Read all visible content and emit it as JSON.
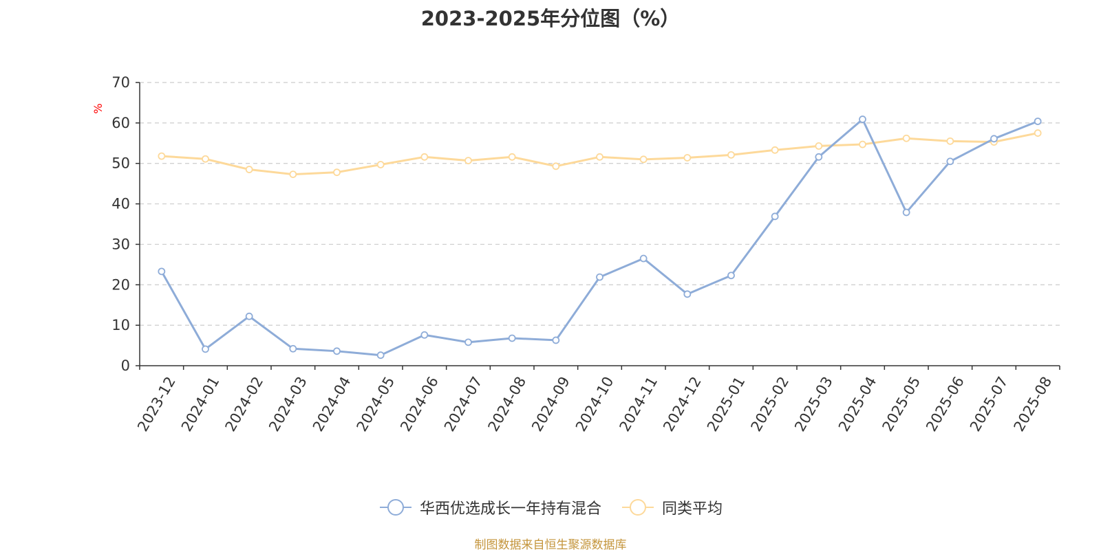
{
  "chart_data": {
    "type": "line",
    "title": "2023-2025年分位图（%）",
    "ylabel": "%",
    "xlabel": "",
    "ylim": [
      0,
      70
    ],
    "yticks": [
      0,
      10,
      20,
      30,
      40,
      50,
      60,
      70
    ],
    "grid": true,
    "legend_position": "bottom",
    "categories": [
      "2023-12",
      "2024-01",
      "2024-02",
      "2024-03",
      "2024-04",
      "2024-05",
      "2024-06",
      "2024-07",
      "2024-08",
      "2024-09",
      "2024-10",
      "2024-11",
      "2024-12",
      "2025-01",
      "2025-02",
      "2025-03",
      "2025-04",
      "2025-05",
      "2025-06",
      "2025-07",
      "2025-08"
    ],
    "series": [
      {
        "name": "华西优选成长一年持有混合",
        "color": "#8eacd8",
        "values": [
          23.3,
          4.1,
          12.2,
          4.2,
          3.6,
          2.6,
          7.6,
          5.8,
          6.8,
          6.3,
          21.9,
          26.5,
          17.7,
          22.3,
          36.9,
          51.6,
          60.9,
          37.9,
          50.5,
          56.1,
          60.4
        ]
      },
      {
        "name": "同类平均",
        "color": "#fdd99a",
        "values": [
          51.8,
          51.1,
          48.5,
          47.3,
          47.8,
          49.7,
          51.6,
          50.7,
          51.6,
          49.3,
          51.6,
          51.0,
          51.4,
          52.1,
          53.3,
          54.3,
          54.7,
          56.2,
          55.5,
          55.3,
          57.5
        ]
      }
    ]
  },
  "source_text": "制图数据来自恒生聚源数据库",
  "colors": {
    "axis": "#333333",
    "grid": "#cccccc",
    "ylabel": "#ff0000",
    "source": "#c4953c"
  }
}
